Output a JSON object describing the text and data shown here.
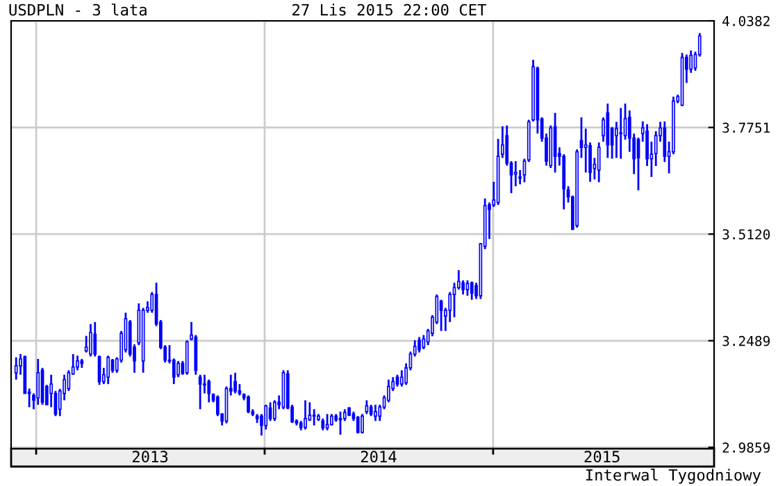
{
  "chart_data": {
    "type": "candlestick",
    "title": "USDPLN - 3 lata",
    "subtitle": "27 Lis 2015 22:00 CET",
    "annotations": [
      "Interwal Tygodniowy"
    ],
    "color": "#0000ff",
    "grid": "y",
    "ref_lines": [
      {
        "axis": "x",
        "value": "2013-01-01",
        "color": "#cccccc"
      },
      {
        "axis": "x",
        "value": "2014-01-01",
        "color": "#cccccc"
      },
      {
        "axis": "x",
        "value": "2015-01-01",
        "color": "#cccccc"
      }
    ],
    "xlim": [
      "2012-11-22",
      "2015-12-20"
    ],
    "xticks": [
      {
        "value": "2013-07-02",
        "label": "2013"
      },
      {
        "value": "2014-07-02",
        "label": "2014"
      },
      {
        "value": "2015-06-24",
        "label": "2015"
      }
    ],
    "ylim": [
      2.983,
      4.0382
    ],
    "yticks": [
      2.9859,
      3.2489,
      {
        "value": 3.512,
        "label": "3.5120"
      },
      3.7751,
      4.0382
    ],
    "x": [
      "2012-11-30",
      "2012-12-07",
      "2012-12-14",
      "2012-12-21",
      "2012-12-28",
      "2013-01-04",
      "2013-01-11",
      "2013-01-18",
      "2013-01-25",
      "2013-02-01",
      "2013-02-08",
      "2013-02-15",
      "2013-02-22",
      "2013-03-01",
      "2013-03-08",
      "2013-03-15",
      "2013-03-22",
      "2013-03-29",
      "2013-04-05",
      "2013-04-12",
      "2013-04-19",
      "2013-04-26",
      "2013-05-03",
      "2013-05-10",
      "2013-05-17",
      "2013-05-24",
      "2013-05-31",
      "2013-06-07",
      "2013-06-14",
      "2013-06-21",
      "2013-06-28",
      "2013-07-05",
      "2013-07-12",
      "2013-07-19",
      "2013-07-26",
      "2013-08-02",
      "2013-08-09",
      "2013-08-16",
      "2013-08-23",
      "2013-08-30",
      "2013-09-06",
      "2013-09-13",
      "2013-09-20",
      "2013-09-27",
      "2013-10-04",
      "2013-10-11",
      "2013-10-18",
      "2013-10-25",
      "2013-11-01",
      "2013-11-08",
      "2013-11-15",
      "2013-11-22",
      "2013-11-29",
      "2013-12-06",
      "2013-12-13",
      "2013-12-20",
      "2013-12-27",
      "2014-01-03",
      "2014-01-10",
      "2014-01-17",
      "2014-01-24",
      "2014-01-31",
      "2014-02-07",
      "2014-02-14",
      "2014-02-21",
      "2014-02-28",
      "2014-03-07",
      "2014-03-14",
      "2014-03-21",
      "2014-03-28",
      "2014-04-04",
      "2014-04-11",
      "2014-04-18",
      "2014-04-25",
      "2014-05-02",
      "2014-05-09",
      "2014-05-16",
      "2014-05-23",
      "2014-05-30",
      "2014-06-06",
      "2014-06-13",
      "2014-06-20",
      "2014-06-27",
      "2014-07-04",
      "2014-07-11",
      "2014-07-18",
      "2014-07-25",
      "2014-08-01",
      "2014-08-08",
      "2014-08-15",
      "2014-08-22",
      "2014-08-29",
      "2014-09-05",
      "2014-09-12",
      "2014-09-19",
      "2014-09-26",
      "2014-10-03",
      "2014-10-10",
      "2014-10-17",
      "2014-10-24",
      "2014-10-31",
      "2014-11-07",
      "2014-11-14",
      "2014-11-21",
      "2014-11-28",
      "2014-12-05",
      "2014-12-12",
      "2014-12-19",
      "2014-12-26",
      "2015-01-02",
      "2015-01-09",
      "2015-01-16",
      "2015-01-23",
      "2015-01-30",
      "2015-02-06",
      "2015-02-13",
      "2015-02-20",
      "2015-02-27",
      "2015-03-06",
      "2015-03-13",
      "2015-03-20",
      "2015-03-27",
      "2015-04-03",
      "2015-04-10",
      "2015-04-17",
      "2015-04-24",
      "2015-05-01",
      "2015-05-08",
      "2015-05-15",
      "2015-05-22",
      "2015-05-29",
      "2015-06-05",
      "2015-06-12",
      "2015-06-19",
      "2015-06-26",
      "2015-07-03",
      "2015-07-10",
      "2015-07-17",
      "2015-07-24",
      "2015-07-31",
      "2015-08-07",
      "2015-08-14",
      "2015-08-21",
      "2015-08-28",
      "2015-09-04",
      "2015-09-11",
      "2015-09-18",
      "2015-09-25",
      "2015-10-02",
      "2015-10-09",
      "2015-10-16",
      "2015-10-23",
      "2015-10-30",
      "2015-11-06",
      "2015-11-13",
      "2015-11-20",
      "2015-11-27"
    ],
    "ohlc": [
      [
        3.17,
        3.208,
        3.153,
        3.187
      ],
      [
        3.187,
        3.216,
        3.165,
        3.204
      ],
      [
        3.21,
        3.212,
        3.119,
        3.119
      ],
      [
        3.119,
        3.131,
        3.085,
        3.122
      ],
      [
        3.114,
        3.119,
        3.08,
        3.102
      ],
      [
        3.108,
        3.204,
        3.091,
        3.17
      ],
      [
        3.176,
        3.182,
        3.091,
        3.097
      ],
      [
        3.136,
        3.14,
        3.091,
        3.091
      ],
      [
        3.119,
        3.165,
        3.085,
        3.142
      ],
      [
        3.119,
        3.125,
        3.063,
        3.068
      ],
      [
        3.08,
        3.13,
        3.063,
        3.125
      ],
      [
        3.119,
        3.165,
        3.102,
        3.153
      ],
      [
        3.131,
        3.176,
        3.125,
        3.17
      ],
      [
        3.167,
        3.216,
        3.165,
        3.184
      ],
      [
        3.184,
        3.212,
        3.176,
        3.199
      ],
      [
        3.199,
        3.204,
        3.182,
        3.193
      ],
      [
        3.224,
        3.261,
        3.22,
        3.233
      ],
      [
        3.216,
        3.29,
        3.21,
        3.269
      ],
      [
        3.265,
        3.295,
        3.21,
        3.216
      ],
      [
        3.21,
        3.212,
        3.14,
        3.148
      ],
      [
        3.148,
        3.182,
        3.142,
        3.165
      ],
      [
        3.159,
        3.212,
        3.142,
        3.208
      ],
      [
        3.201,
        3.204,
        3.17,
        3.176
      ],
      [
        3.176,
        3.208,
        3.17,
        3.204
      ],
      [
        3.201,
        3.273,
        3.195,
        3.267
      ],
      [
        3.227,
        3.318,
        3.22,
        3.303
      ],
      [
        3.295,
        3.3,
        3.21,
        3.216
      ],
      [
        3.233,
        3.24,
        3.17,
        3.199
      ],
      [
        3.244,
        3.341,
        3.238,
        3.324
      ],
      [
        3.199,
        3.33,
        3.17,
        3.324
      ],
      [
        3.324,
        3.346,
        3.318,
        3.331
      ],
      [
        3.324,
        3.369,
        3.318,
        3.363
      ],
      [
        3.363,
        3.392,
        3.285,
        3.29
      ],
      [
        3.295,
        3.3,
        3.228,
        3.233
      ],
      [
        3.233,
        3.238,
        3.195,
        3.201
      ],
      [
        3.201,
        3.238,
        3.193,
        3.199
      ],
      [
        3.201,
        3.205,
        3.142,
        3.159
      ],
      [
        3.165,
        3.199,
        3.159,
        3.193
      ],
      [
        3.193,
        3.199,
        3.165,
        3.168
      ],
      [
        3.17,
        3.25,
        3.165,
        3.246
      ],
      [
        3.253,
        3.295,
        3.25,
        3.263
      ],
      [
        3.258,
        3.263,
        3.165,
        3.176
      ],
      [
        3.159,
        3.165,
        3.08,
        3.142
      ],
      [
        3.142,
        3.165,
        3.119,
        3.14
      ],
      [
        3.148,
        3.153,
        3.097,
        3.119
      ],
      [
        3.116,
        3.119,
        3.097,
        3.102
      ],
      [
        3.11,
        3.114,
        3.063,
        3.068
      ],
      [
        3.068,
        3.07,
        3.04,
        3.051
      ],
      [
        3.051,
        3.136,
        3.045,
        3.131
      ],
      [
        3.131,
        3.165,
        3.114,
        3.125
      ],
      [
        3.148,
        3.17,
        3.119,
        3.125
      ],
      [
        3.125,
        3.142,
        3.114,
        3.119
      ],
      [
        3.116,
        3.119,
        3.102,
        3.108
      ],
      [
        3.11,
        3.114,
        3.07,
        3.074
      ],
      [
        3.074,
        3.08,
        3.063,
        3.068
      ],
      [
        3.063,
        3.068,
        3.046,
        3.057
      ],
      [
        3.063,
        3.068,
        3.015,
        3.04
      ],
      [
        3.04,
        3.091,
        3.03,
        3.088
      ],
      [
        3.083,
        3.097,
        3.051,
        3.057
      ],
      [
        3.057,
        3.102,
        3.051,
        3.097
      ],
      [
        3.097,
        3.114,
        3.08,
        3.091
      ],
      [
        3.085,
        3.176,
        3.08,
        3.17
      ],
      [
        3.167,
        3.176,
        3.08,
        3.083
      ],
      [
        3.085,
        3.091,
        3.046,
        3.049
      ],
      [
        3.051,
        3.055,
        3.04,
        3.046
      ],
      [
        3.046,
        3.051,
        3.028,
        3.035
      ],
      [
        3.035,
        3.102,
        3.03,
        3.057
      ],
      [
        3.054,
        3.097,
        3.051,
        3.065
      ],
      [
        3.065,
        3.08,
        3.04,
        3.063
      ],
      [
        3.055,
        3.068,
        3.051,
        3.063
      ],
      [
        3.051,
        3.057,
        3.028,
        3.034
      ],
      [
        3.034,
        3.068,
        3.028,
        3.042
      ],
      [
        3.042,
        3.068,
        3.04,
        3.063
      ],
      [
        3.063,
        3.068,
        3.049,
        3.054
      ],
      [
        3.054,
        3.074,
        3.017,
        3.057
      ],
      [
        3.057,
        3.08,
        3.051,
        3.072
      ],
      [
        3.083,
        3.085,
        3.063,
        3.065
      ],
      [
        3.068,
        3.074,
        3.051,
        3.057
      ],
      [
        3.06,
        3.063,
        3.02,
        3.023
      ],
      [
        3.023,
        3.068,
        3.02,
        3.063
      ],
      [
        3.074,
        3.102,
        3.068,
        3.088
      ],
      [
        3.085,
        3.091,
        3.063,
        3.068
      ],
      [
        3.063,
        3.091,
        3.051,
        3.074
      ],
      [
        3.063,
        3.091,
        3.051,
        3.085
      ],
      [
        3.085,
        3.114,
        3.08,
        3.108
      ],
      [
        3.102,
        3.153,
        3.097,
        3.136
      ],
      [
        3.131,
        3.159,
        3.125,
        3.148
      ],
      [
        3.159,
        3.165,
        3.136,
        3.142
      ],
      [
        3.142,
        3.176,
        3.136,
        3.159
      ],
      [
        3.145,
        3.193,
        3.14,
        3.182
      ],
      [
        3.182,
        3.222,
        3.176,
        3.216
      ],
      [
        3.216,
        3.25,
        3.21,
        3.235
      ],
      [
        3.25,
        3.258,
        3.22,
        3.227
      ],
      [
        3.233,
        3.263,
        3.228,
        3.253
      ],
      [
        3.246,
        3.278,
        3.238,
        3.273
      ],
      [
        3.267,
        3.312,
        3.26,
        3.307
      ],
      [
        3.295,
        3.363,
        3.29,
        3.358
      ],
      [
        3.346,
        3.35,
        3.273,
        3.324
      ],
      [
        3.31,
        3.33,
        3.273,
        3.324
      ],
      [
        3.324,
        3.369,
        3.295,
        3.363
      ],
      [
        3.363,
        3.392,
        3.307,
        3.38
      ],
      [
        3.38,
        3.423,
        3.375,
        3.395
      ],
      [
        3.392,
        3.398,
        3.363,
        3.375
      ],
      [
        3.375,
        3.398,
        3.36,
        3.39
      ],
      [
        3.392,
        3.395,
        3.35,
        3.366
      ],
      [
        3.385,
        3.392,
        3.352,
        3.36
      ],
      [
        3.36,
        3.49,
        3.352,
        3.488
      ],
      [
        3.482,
        3.6,
        3.475,
        3.582
      ],
      [
        3.584,
        3.59,
        3.5,
        3.573
      ],
      [
        3.584,
        3.641,
        3.579,
        3.596
      ],
      [
        3.59,
        3.747,
        3.584,
        3.704
      ],
      [
        3.709,
        3.778,
        3.7,
        3.732
      ],
      [
        3.755,
        3.78,
        3.681,
        3.687
      ],
      [
        3.687,
        3.692,
        3.613,
        3.658
      ],
      [
        3.66,
        3.692,
        3.63,
        3.664
      ],
      [
        3.653,
        3.67,
        3.635,
        3.65
      ],
      [
        3.658,
        3.698,
        3.64,
        3.692
      ],
      [
        3.695,
        3.794,
        3.69,
        3.789
      ],
      [
        3.794,
        3.942,
        3.79,
        3.925
      ],
      [
        3.921,
        3.925,
        3.76,
        3.794
      ],
      [
        3.796,
        3.8,
        3.74,
        3.749
      ],
      [
        3.749,
        3.76,
        3.681,
        3.692
      ],
      [
        3.681,
        3.78,
        3.675,
        3.774
      ],
      [
        3.777,
        3.811,
        3.664,
        3.704
      ],
      [
        3.711,
        3.726,
        3.681,
        3.704
      ],
      [
        3.704,
        3.709,
        3.573,
        3.624
      ],
      [
        3.621,
        3.63,
        3.59,
        3.604
      ],
      [
        3.604,
        3.607,
        3.522,
        3.524
      ],
      [
        3.533,
        3.721,
        3.528,
        3.715
      ],
      [
        3.743,
        3.8,
        3.7,
        3.726
      ],
      [
        3.726,
        3.772,
        3.664,
        3.732
      ],
      [
        3.73,
        3.738,
        3.641,
        3.664
      ],
      [
        3.674,
        3.7,
        3.647,
        3.684
      ],
      [
        3.67,
        3.738,
        3.64,
        3.726
      ],
      [
        3.755,
        3.8,
        3.74,
        3.794
      ],
      [
        3.811,
        3.834,
        3.7,
        3.732
      ],
      [
        3.772,
        3.776,
        3.698,
        3.732
      ],
      [
        3.755,
        3.789,
        3.7,
        3.772
      ],
      [
        3.76,
        3.823,
        3.698,
        3.762
      ],
      [
        3.755,
        3.834,
        3.745,
        3.797
      ],
      [
        3.8,
        3.817,
        3.715,
        3.749
      ],
      [
        3.749,
        3.76,
        3.66,
        3.698
      ],
      [
        3.745,
        3.75,
        3.62,
        3.7
      ],
      [
        3.76,
        3.79,
        3.74,
        3.774
      ],
      [
        3.766,
        3.783,
        3.68,
        3.698
      ],
      [
        3.698,
        3.74,
        3.653,
        3.709
      ],
      [
        3.711,
        3.766,
        3.68,
        3.755
      ],
      [
        3.755,
        3.789,
        3.74,
        3.774
      ],
      [
        3.774,
        3.79,
        3.69,
        3.704
      ],
      [
        3.704,
        3.74,
        3.662,
        3.715
      ],
      [
        3.715,
        3.851,
        3.709,
        3.84
      ],
      [
        3.84,
        3.856,
        3.835,
        3.851
      ],
      [
        3.83,
        3.959,
        3.828,
        3.948
      ],
      [
        3.948,
        3.955,
        3.885,
        3.919
      ],
      [
        3.919,
        3.965,
        3.91,
        3.953
      ],
      [
        3.922,
        3.962,
        3.915,
        3.955
      ],
      [
        3.955,
        4.008,
        3.95,
        4.001
      ]
    ]
  }
}
